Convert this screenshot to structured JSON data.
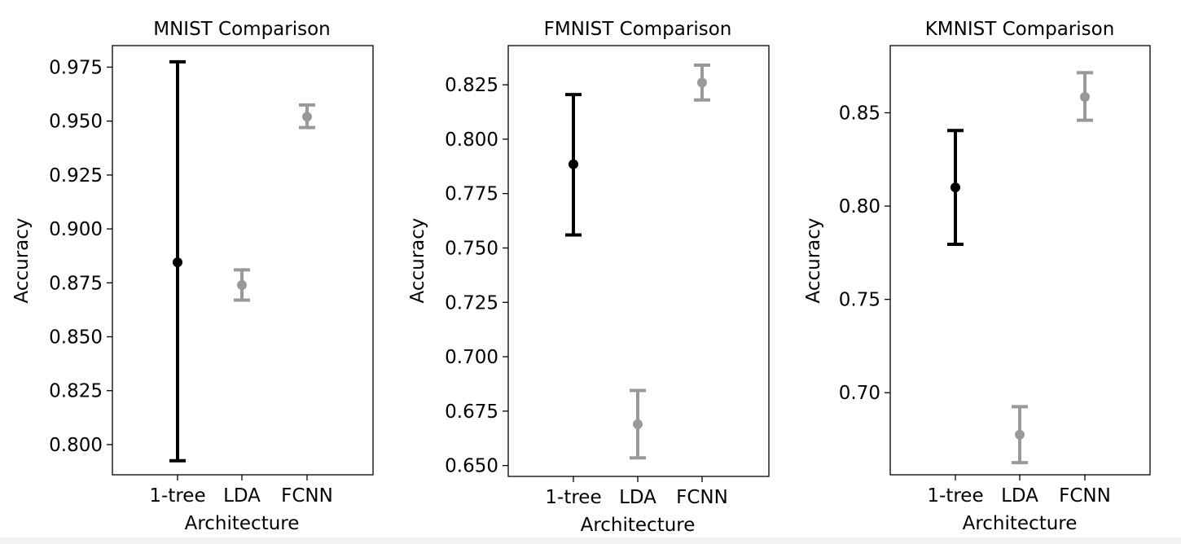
{
  "colors": {
    "primary": "#000000",
    "secondary": "#999999"
  },
  "chart_data": [
    {
      "type": "errorbar",
      "title": "MNIST Comparison",
      "xlabel": "Architecture",
      "ylabel": "Accuracy",
      "categories": [
        "1-tree",
        "LDA",
        "FCNN"
      ],
      "ylim": [
        0.786,
        0.985
      ],
      "yticks": [
        0.8,
        0.825,
        0.85,
        0.875,
        0.9,
        0.925,
        0.95,
        0.975
      ],
      "ytick_labels": [
        "0.800",
        "0.825",
        "0.850",
        "0.875",
        "0.900",
        "0.925",
        "0.950",
        "0.975"
      ],
      "points": [
        {
          "category": "1-tree",
          "mean": 0.8845,
          "lower": 0.7925,
          "upper": 0.9775,
          "color": "#000000"
        },
        {
          "category": "LDA",
          "mean": 0.874,
          "lower": 0.867,
          "upper": 0.881,
          "color": "#999999"
        },
        {
          "category": "FCNN",
          "mean": 0.952,
          "lower": 0.947,
          "upper": 0.9575,
          "color": "#999999"
        }
      ]
    },
    {
      "type": "errorbar",
      "title": "FMNIST Comparison",
      "xlabel": "Architecture",
      "ylabel": "Accuracy",
      "categories": [
        "1-tree",
        "LDA",
        "FCNN"
      ],
      "ylim": [
        0.645,
        0.843
      ],
      "yticks": [
        0.65,
        0.675,
        0.7,
        0.725,
        0.75,
        0.775,
        0.8,
        0.825
      ],
      "ytick_labels": [
        "0.650",
        "0.675",
        "0.700",
        "0.725",
        "0.750",
        "0.775",
        "0.800",
        "0.825"
      ],
      "points": [
        {
          "category": "1-tree",
          "mean": 0.7885,
          "lower": 0.756,
          "upper": 0.8205,
          "color": "#000000"
        },
        {
          "category": "LDA",
          "mean": 0.669,
          "lower": 0.6535,
          "upper": 0.6845,
          "color": "#999999"
        },
        {
          "category": "FCNN",
          "mean": 0.826,
          "lower": 0.818,
          "upper": 0.834,
          "color": "#999999"
        }
      ]
    },
    {
      "type": "errorbar",
      "title": "KMNIST Comparison",
      "xlabel": "Architecture",
      "ylabel": "Accuracy",
      "categories": [
        "1-tree",
        "LDA",
        "FCNN"
      ],
      "ylim": [
        0.656,
        0.886
      ],
      "yticks": [
        0.7,
        0.75,
        0.8,
        0.85
      ],
      "ytick_labels": [
        "0.70",
        "0.75",
        "0.80",
        "0.85"
      ],
      "points": [
        {
          "category": "1-tree",
          "mean": 0.81,
          "lower": 0.7795,
          "upper": 0.8405,
          "color": "#000000"
        },
        {
          "category": "LDA",
          "mean": 0.6775,
          "lower": 0.6625,
          "upper": 0.6925,
          "color": "#999999"
        },
        {
          "category": "FCNN",
          "mean": 0.8585,
          "lower": 0.846,
          "upper": 0.8715,
          "color": "#999999"
        }
      ]
    }
  ]
}
